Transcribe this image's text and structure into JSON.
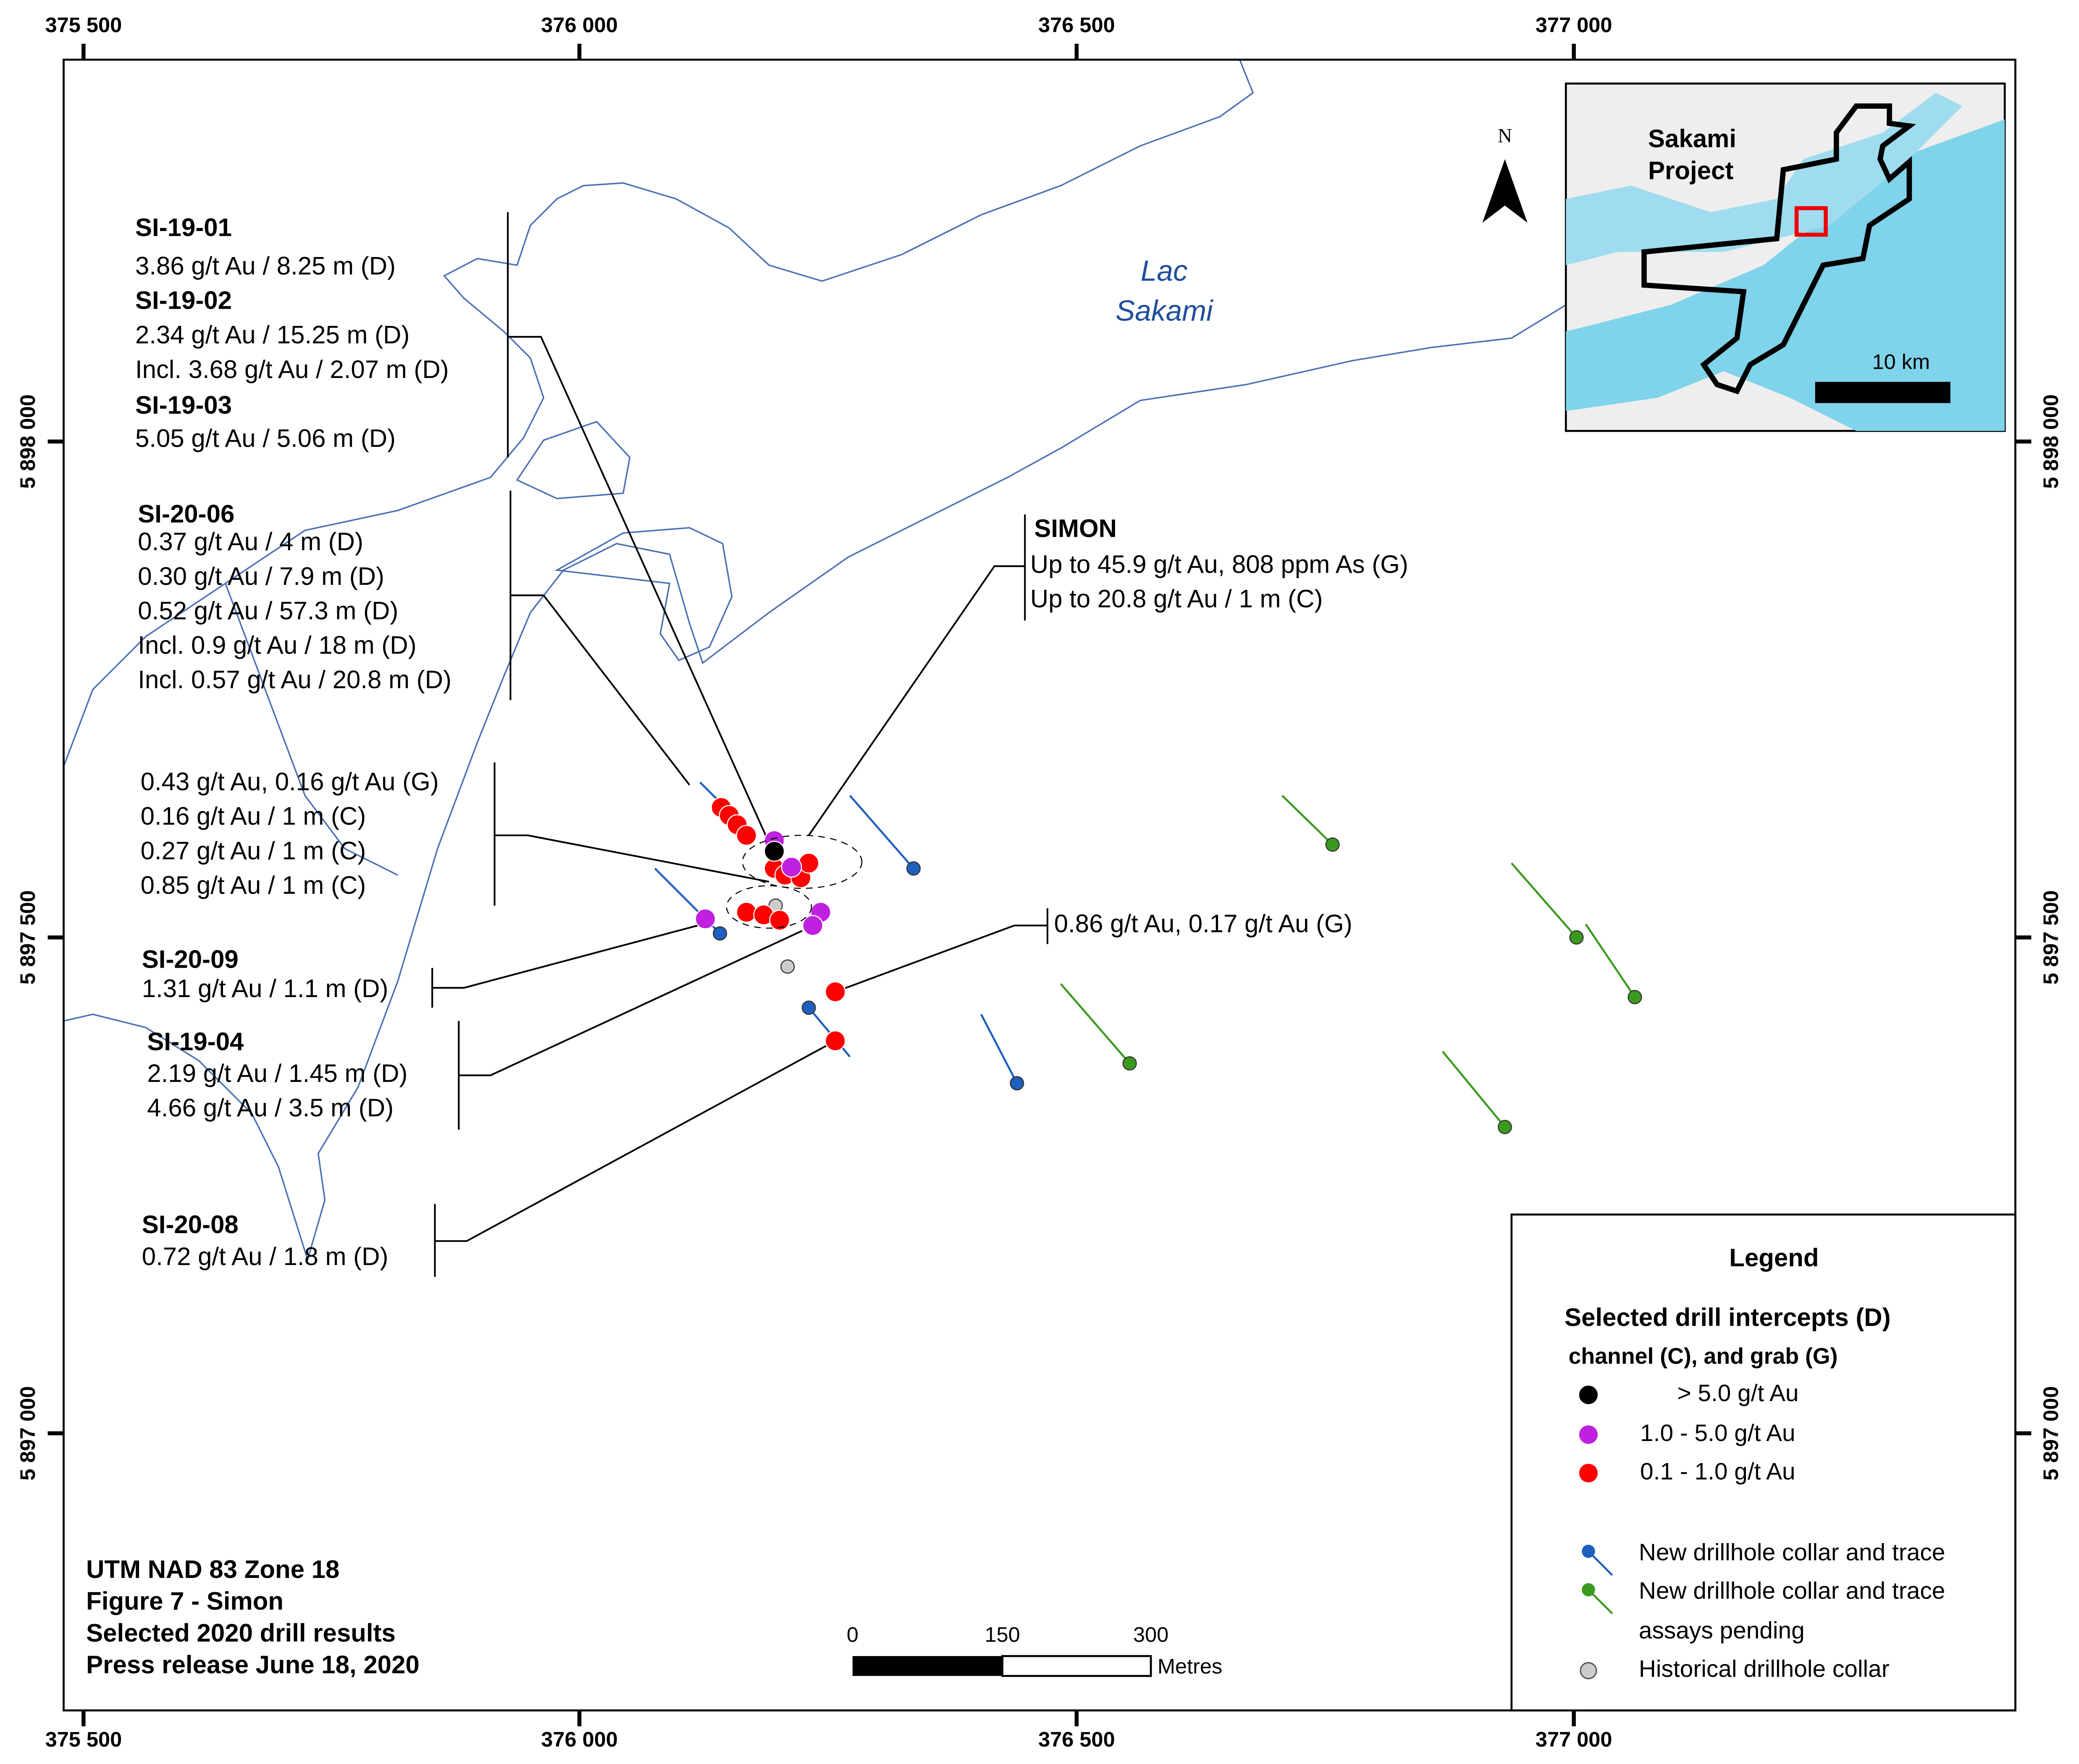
{
  "x_ticks": [
    "375 500",
    "376 000",
    "376 500",
    "377 000"
  ],
  "y_ticks": [
    "5 898 000",
    "5 897 500",
    "5 897 000"
  ],
  "lake_label": [
    "Lac",
    "Sakami"
  ],
  "callouts": [
    {
      "title": "SI-19-01",
      "lines": [
        "3.86 g/t Au / 8.25 m (D)"
      ]
    },
    {
      "title": "SI-19-02",
      "lines": [
        "2.34 g/t Au / 15.25 m (D)",
        "Incl. 3.68 g/t Au / 2.07 m (D)"
      ]
    },
    {
      "title": "SI-19-03",
      "lines": [
        "5.05 g/t Au / 5.06 m (D)"
      ]
    },
    {
      "title": "SI-20-06",
      "lines": [
        "0.37 g/t Au / 4 m (D)",
        "0.30 g/t Au / 7.9 m (D)",
        "0.52 g/t Au / 57.3 m (D)",
        "Incl. 0.9 g/t Au / 18 m (D)",
        "Incl. 0.57 g/t Au / 20.8 m (D)"
      ]
    },
    {
      "lines": [
        "0.43 g/t Au, 0.16 g/t Au (G)",
        "0.16 g/t Au / 1 m (C)",
        "0.27 g/t Au / 1 m (C)",
        "0.85 g/t Au / 1 m (C)"
      ]
    },
    {
      "title": "SI-20-09",
      "lines": [
        "1.31 g/t Au / 1.1 m (D)"
      ]
    },
    {
      "title": "SI-19-04",
      "lines": [
        "2.19 g/t Au / 1.45 m (D)",
        "4.66 g/t Au / 3.5 m (D)"
      ]
    },
    {
      "title": "SI-20-08",
      "lines": [
        "0.72 g/t Au / 1.8 m (D)"
      ]
    },
    {
      "title": "SIMON",
      "lines": [
        "Up to 45.9 g/t Au, 808 ppm As (G)",
        "Up to 20.8 g/t Au / 1 m (C)"
      ]
    },
    {
      "lines": [
        "0.86 g/t Au, 0.17 g/t Au (G)"
      ]
    }
  ],
  "inset": {
    "title": [
      "Sakami",
      "Project"
    ],
    "scale_label": "10 km",
    "north": "N"
  },
  "legend": {
    "title": "Legend",
    "subtitle": [
      "Selected drill intercepts (D)",
      "channel (C), and grab (G)"
    ],
    "items": [
      "> 5.0 g/t Au",
      "1.0 - 5.0 g/t Au",
      "0.1 - 1.0 g/t Au",
      "New drillhole collar and trace",
      "New drillhole collar and trace",
      "assays pending",
      "Historical drillhole collar"
    ]
  },
  "info": [
    "UTM NAD 83 Zone 18",
    "Figure 7 - Simon",
    "Selected 2020 drill results",
    "Press release June 18, 2020"
  ],
  "scale_bar": {
    "labels": [
      "0",
      "150",
      "300"
    ],
    "unit": "Metres"
  }
}
